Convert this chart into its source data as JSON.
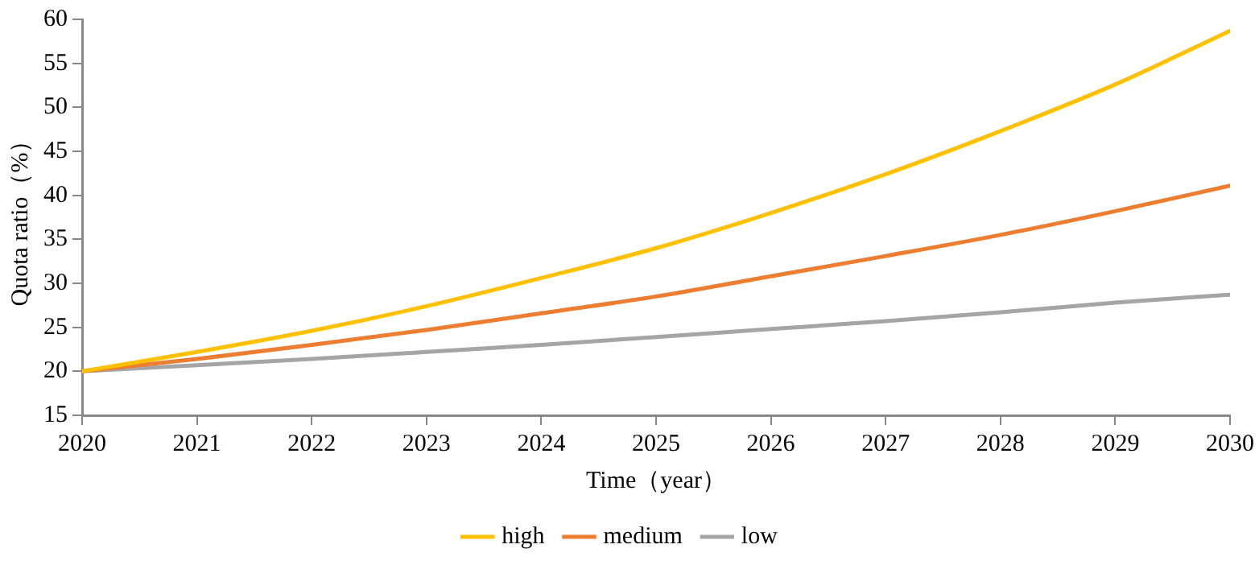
{
  "chart_data": {
    "type": "line",
    "xlabel": "Time（year）",
    "ylabel": "Quota ratio（%）",
    "x": [
      2020,
      2021,
      2022,
      2023,
      2024,
      2025,
      2026,
      2027,
      2028,
      2029,
      2030
    ],
    "xlim": [
      2020,
      2030
    ],
    "xticks": [
      2020,
      2021,
      2022,
      2023,
      2024,
      2025,
      2026,
      2027,
      2028,
      2029,
      2030
    ],
    "ylim": [
      15,
      60
    ],
    "yticks": [
      15,
      20,
      25,
      30,
      35,
      40,
      45,
      50,
      55,
      60
    ],
    "grid": false,
    "legend": "bottom",
    "marker": "none",
    "line_style": "solid",
    "series": [
      {
        "name": "high",
        "color": "#ffc000",
        "values": [
          20,
          22.2,
          24.6,
          27.4,
          30.6,
          34.0,
          38.0,
          42.4,
          47.3,
          52.6,
          58.7
        ]
      },
      {
        "name": "medium",
        "color": "#ed7d31",
        "values": [
          20,
          21.4,
          23.0,
          24.7,
          26.6,
          28.5,
          30.8,
          33.1,
          35.5,
          38.2,
          41.1
        ]
      },
      {
        "name": "low",
        "color": "#a5a5a5",
        "values": [
          20,
          20.7,
          21.4,
          22.2,
          23.0,
          23.9,
          24.8,
          25.7,
          26.7,
          27.8,
          28.7
        ]
      }
    ]
  }
}
